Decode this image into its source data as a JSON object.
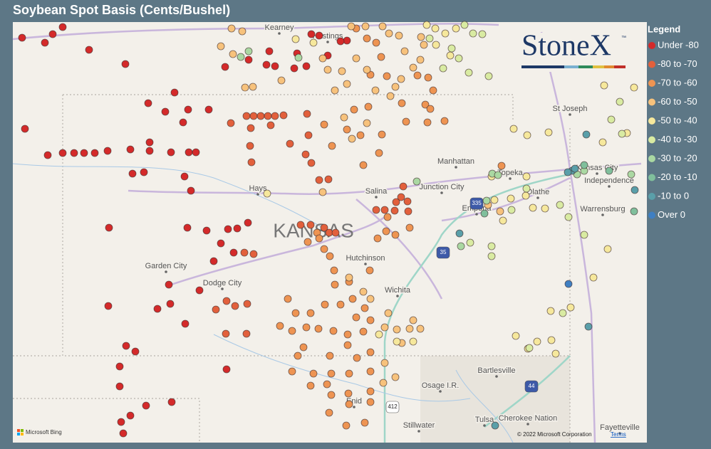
{
  "title": "Soybean Spot Basis (Cents/Bushel)",
  "legend": {
    "title": "Legend",
    "items": [
      {
        "label": "Under -80",
        "color": "#d42a2a"
      },
      {
        "label": "-80 to -70",
        "color": "#e2603c"
      },
      {
        "label": "-70 to -60",
        "color": "#ee9452"
      },
      {
        "label": "-60 to -50",
        "color": "#f7c27c"
      },
      {
        "label": "-50 to -40",
        "color": "#f6e89c"
      },
      {
        "label": "-40 to -30",
        "color": "#d9eba2"
      },
      {
        "label": "-30 to -20",
        "color": "#aad8a2"
      },
      {
        "label": "-20 to -10",
        "color": "#80bf9c"
      },
      {
        "label": "-10 to 0",
        "color": "#5a9fa9"
      },
      {
        "label": "Over 0",
        "color": "#3f7fc2"
      }
    ]
  },
  "logo": {
    "text": "StoneX",
    "mark": "™"
  },
  "map": {
    "state_label": "KANSAS",
    "labels": [
      "Kearney",
      "Hastings",
      "St Joseph",
      "Manhattan",
      "Topeka",
      "Kansas City",
      "Independence",
      "Olathe",
      "Hays",
      "Salina",
      "Junction City",
      "Emporia",
      "Warrensburg",
      "Hutchinson",
      "Garden City",
      "Dodge City",
      "Wichita",
      "Bartlesville",
      "Osage I.R.",
      "Enid",
      "Stillwater",
      "Tulsa",
      "Cherokee Nation",
      "Fayetteville"
    ],
    "shields": [
      "335",
      "35",
      "44",
      "412"
    ],
    "provider": "Microsoft Bing",
    "copyright": "© 2022 Microsoft Corporation",
    "terms": "Terms"
  }
}
